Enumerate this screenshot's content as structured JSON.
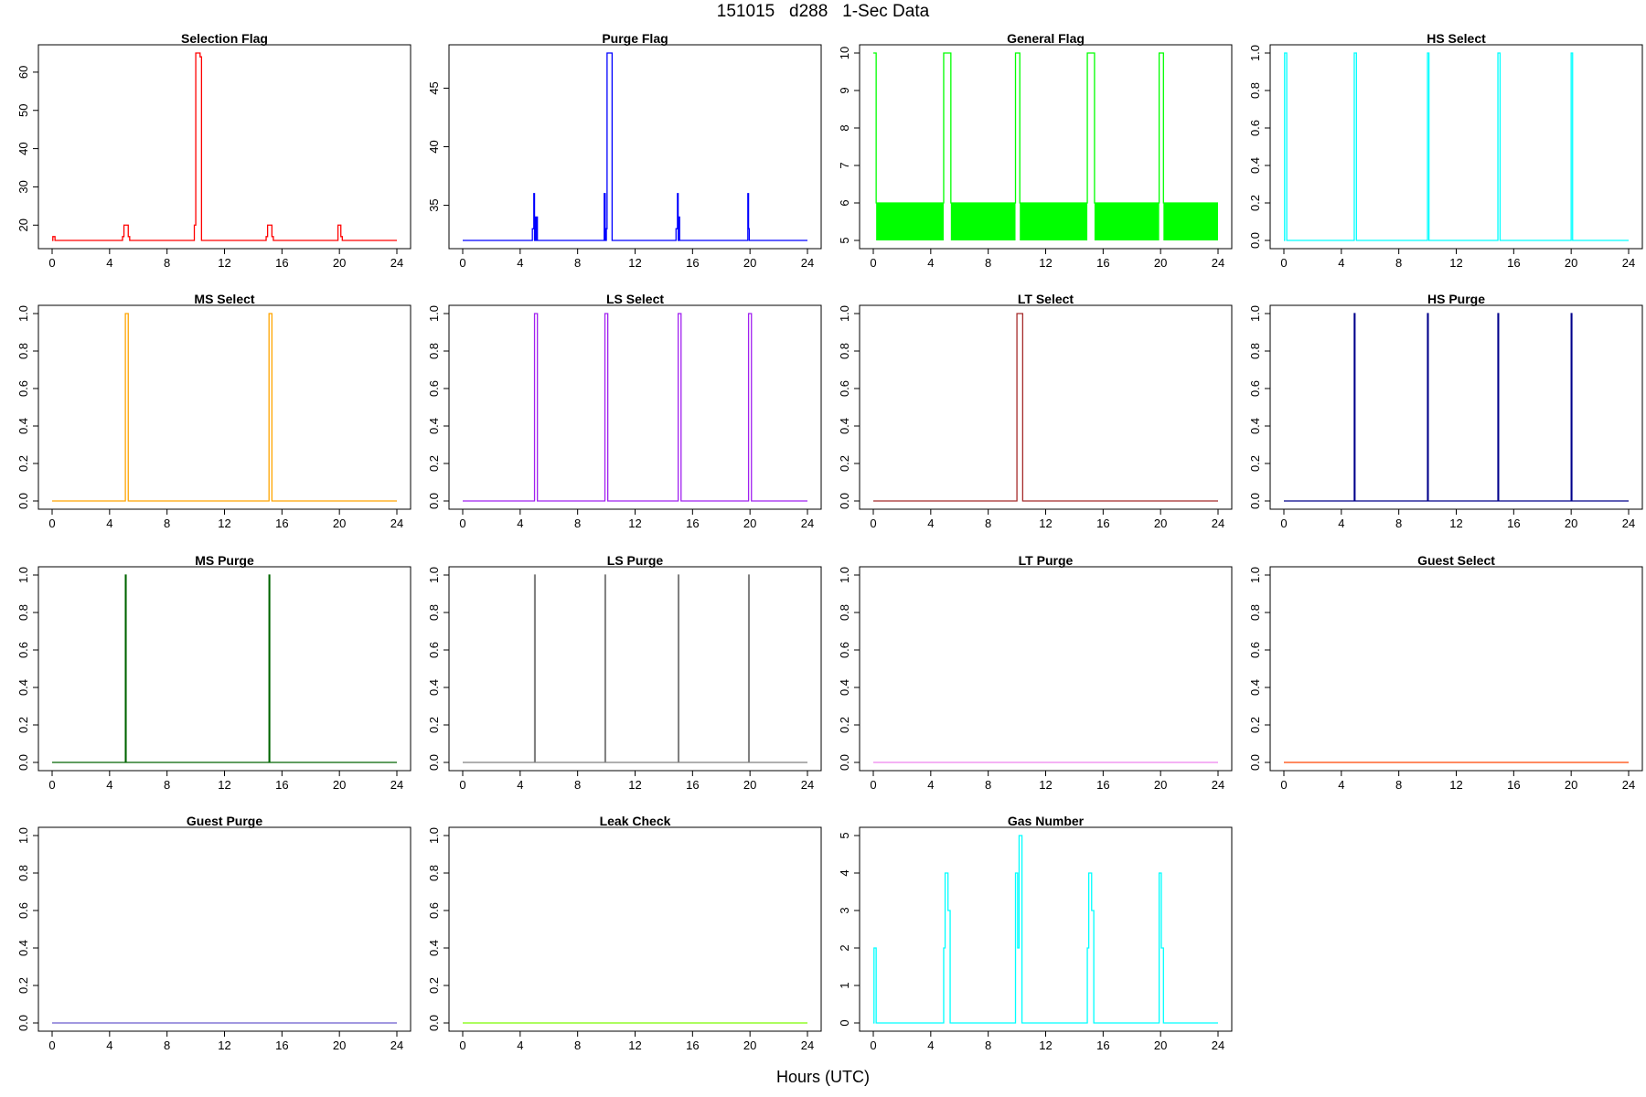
{
  "figure": {
    "title": "151015   d288   1-Sec Data",
    "xlabel": "Hours (UTC)"
  },
  "chart_data": [
    {
      "type": "line",
      "title": "Selection Flag",
      "color": "#ff0000",
      "xlim": [
        0,
        24
      ],
      "ylim": [
        16,
        65
      ],
      "xticks": [
        "0",
        "4",
        "8",
        "12",
        "16",
        "20",
        "24"
      ],
      "yticks": [
        "20",
        "30",
        "40",
        "50",
        "60"
      ],
      "series": [
        {
          "x": [
            0,
            0.05,
            0.05,
            0.2,
            0.2,
            4.9,
            4.9,
            5.0,
            5.0,
            5.3,
            5.3,
            5.4,
            5.4,
            9.9,
            9.9,
            10.0,
            10.0,
            10.3,
            10.3,
            10.4,
            10.4,
            14.9,
            14.9,
            15.0,
            15.0,
            15.3,
            15.3,
            15.4,
            15.4,
            19.9,
            19.9,
            20.1,
            20.1,
            20.2,
            20.2,
            24
          ],
          "y": [
            16,
            16,
            17,
            17,
            16,
            16,
            17,
            17,
            20,
            20,
            17,
            17,
            16,
            16,
            20,
            20,
            65,
            65,
            64,
            64,
            16,
            16,
            17,
            17,
            20,
            20,
            17,
            17,
            16,
            16,
            20,
            20,
            17,
            17,
            16,
            16
          ]
        }
      ]
    },
    {
      "type": "line",
      "title": "Purge Flag",
      "color": "#0000ff",
      "xlim": [
        0,
        24
      ],
      "ylim": [
        32,
        48
      ],
      "xticks": [
        "0",
        "4",
        "8",
        "12",
        "16",
        "20",
        "24"
      ],
      "yticks": [
        "35",
        "40",
        "45"
      ],
      "series": [
        {
          "x": [
            0,
            4.85,
            4.85,
            4.95,
            4.95,
            5.0,
            5.0,
            5.05,
            5.05,
            5.1,
            5.1,
            5.15,
            5.15,
            5.2,
            5.2,
            9.85,
            9.85,
            9.92,
            9.92,
            10.0,
            10.0,
            10.05,
            10.05,
            10.4,
            10.4,
            14.85,
            14.85,
            14.95,
            14.95,
            15.0,
            15.0,
            15.05,
            15.05,
            15.1,
            15.1,
            15.15,
            15.15,
            19.85,
            19.85,
            19.9,
            19.9,
            19.95,
            19.95,
            24
          ],
          "y": [
            32,
            32,
            33,
            33,
            36,
            36,
            32,
            32,
            34,
            34,
            32,
            32,
            34,
            34,
            32,
            32,
            36,
            36,
            32,
            32,
            33,
            33,
            48,
            48,
            32,
            32,
            33,
            33,
            36,
            36,
            32,
            32,
            34,
            34,
            32,
            32,
            32,
            32,
            36,
            36,
            33,
            33,
            32,
            32
          ]
        }
      ]
    },
    {
      "type": "line",
      "title": "General Flag",
      "color": "#00ff00",
      "band": [
        5,
        6
      ],
      "xlim": [
        0,
        24
      ],
      "ylim": [
        5,
        10
      ],
      "xticks": [
        "0",
        "4",
        "8",
        "12",
        "16",
        "20",
        "24"
      ],
      "yticks": [
        "5",
        "6",
        "7",
        "8",
        "9",
        "10"
      ],
      "series": [
        {
          "x": [
            0,
            0.2,
            0.2,
            4.9,
            4.9,
            5.4,
            5.4,
            9.9,
            9.9,
            10.2,
            10.2,
            14.9,
            14.9,
            15.4,
            15.4,
            19.9,
            19.9,
            20.2,
            20.2,
            24
          ],
          "y": [
            10,
            10,
            6,
            6,
            10,
            10,
            6,
            6,
            10,
            10,
            6,
            6,
            10,
            10,
            6,
            6,
            10,
            10,
            6,
            6
          ]
        }
      ]
    },
    {
      "type": "line",
      "title": "HS Select",
      "color": "#00ffff",
      "xlim": [
        0,
        24
      ],
      "ylim": [
        0,
        1
      ],
      "xticks": [
        "0",
        "4",
        "8",
        "12",
        "16",
        "20",
        "24"
      ],
      "yticks": [
        "0.0",
        "0.2",
        "0.4",
        "0.6",
        "0.8",
        "1.0"
      ],
      "series": [
        {
          "x": [
            0,
            0.05,
            0.05,
            0.2,
            0.2,
            4.9,
            4.9,
            5.05,
            5.05,
            10.0,
            10.0,
            10.1,
            10.1,
            14.9,
            14.9,
            15.05,
            15.05,
            20.0,
            20.0,
            20.1,
            20.1,
            24
          ],
          "y": [
            0,
            0,
            1,
            1,
            0,
            0,
            1,
            1,
            0,
            0,
            1,
            1,
            0,
            0,
            1,
            1,
            0,
            0,
            1,
            1,
            0,
            0
          ]
        }
      ]
    },
    {
      "type": "line",
      "title": "MS Select",
      "color": "#ffa500",
      "xlim": [
        0,
        24
      ],
      "ylim": [
        0,
        1
      ],
      "xticks": [
        "0",
        "4",
        "8",
        "12",
        "16",
        "20",
        "24"
      ],
      "yticks": [
        "0.0",
        "0.2",
        "0.4",
        "0.6",
        "0.8",
        "1.0"
      ],
      "series": [
        {
          "x": [
            0,
            5.1,
            5.1,
            5.3,
            5.3,
            15.1,
            15.1,
            15.3,
            15.3,
            24
          ],
          "y": [
            0,
            0,
            1,
            1,
            0,
            0,
            1,
            1,
            0,
            0
          ]
        }
      ]
    },
    {
      "type": "line",
      "title": "LS Select",
      "color": "#a020f0",
      "xlim": [
        0,
        24
      ],
      "ylim": [
        0,
        1
      ],
      "xticks": [
        "0",
        "4",
        "8",
        "12",
        "16",
        "20",
        "24"
      ],
      "yticks": [
        "0.0",
        "0.2",
        "0.4",
        "0.6",
        "0.8",
        "1.0"
      ],
      "series": [
        {
          "x": [
            0,
            5.0,
            5.0,
            5.2,
            5.2,
            9.9,
            9.9,
            10.1,
            10.1,
            15.0,
            15.0,
            15.2,
            15.2,
            19.9,
            19.9,
            20.1,
            20.1,
            24
          ],
          "y": [
            0,
            0,
            1,
            1,
            0,
            0,
            1,
            1,
            0,
            0,
            1,
            1,
            0,
            0,
            1,
            1,
            0,
            0
          ]
        }
      ]
    },
    {
      "type": "line",
      "title": "LT Select",
      "color": "#a52a2a",
      "xlim": [
        0,
        24
      ],
      "ylim": [
        0,
        1
      ],
      "xticks": [
        "0",
        "4",
        "8",
        "12",
        "16",
        "20",
        "24"
      ],
      "yticks": [
        "0.0",
        "0.2",
        "0.4",
        "0.6",
        "0.8",
        "1.0"
      ],
      "series": [
        {
          "x": [
            0,
            10.0,
            10.0,
            10.4,
            10.4,
            24
          ],
          "y": [
            0,
            0,
            1,
            1,
            0,
            0
          ]
        }
      ]
    },
    {
      "type": "line",
      "title": "HS Purge",
      "color": "#00008b",
      "xlim": [
        0,
        24
      ],
      "ylim": [
        0,
        1
      ],
      "xticks": [
        "0",
        "4",
        "8",
        "12",
        "16",
        "20",
        "24"
      ],
      "yticks": [
        "0.0",
        "0.2",
        "0.4",
        "0.6",
        "0.8",
        "1.0"
      ],
      "series": [
        {
          "x": [
            0,
            4.9,
            4.9,
            4.95,
            4.95,
            10.0,
            10.0,
            10.05,
            10.05,
            14.9,
            14.9,
            14.95,
            14.95,
            20.0,
            20.0,
            20.05,
            20.05,
            24
          ],
          "y": [
            0,
            0,
            1,
            1,
            0,
            0,
            1,
            1,
            0,
            0,
            1,
            1,
            0,
            0,
            1,
            1,
            0,
            0
          ]
        }
      ]
    },
    {
      "type": "line",
      "title": "MS Purge",
      "color": "#006400",
      "xlim": [
        0,
        24
      ],
      "ylim": [
        0,
        1
      ],
      "xticks": [
        "0",
        "4",
        "8",
        "12",
        "16",
        "20",
        "24"
      ],
      "yticks": [
        "0.0",
        "0.2",
        "0.4",
        "0.6",
        "0.8",
        "1.0"
      ],
      "series": [
        {
          "x": [
            0,
            5.1,
            5.1,
            5.15,
            5.15,
            15.1,
            15.1,
            15.15,
            15.15,
            24
          ],
          "y": [
            0,
            0,
            1,
            1,
            0,
            0,
            1,
            1,
            0,
            0
          ]
        }
      ]
    },
    {
      "type": "line",
      "title": "LS Purge",
      "color": "#808080",
      "xlim": [
        0,
        24
      ],
      "ylim": [
        0,
        1
      ],
      "xticks": [
        "0",
        "4",
        "8",
        "12",
        "16",
        "20",
        "24"
      ],
      "yticks": [
        "0.0",
        "0.2",
        "0.4",
        "0.6",
        "0.8",
        "1.0"
      ],
      "series": [
        {
          "x": [
            0,
            5.0,
            5.0,
            5.05,
            5.05,
            9.9,
            9.9,
            9.95,
            9.95,
            15.0,
            15.0,
            15.05,
            15.05,
            19.9,
            19.9,
            19.95,
            19.95,
            24
          ],
          "y": [
            0,
            0,
            1,
            1,
            0,
            0,
            1,
            1,
            0,
            0,
            1,
            1,
            0,
            0,
            1,
            1,
            0,
            0
          ]
        }
      ]
    },
    {
      "type": "line",
      "title": "LT Purge",
      "color": "#ee82ee",
      "xlim": [
        0,
        24
      ],
      "ylim": [
        0,
        1
      ],
      "xticks": [
        "0",
        "4",
        "8",
        "12",
        "16",
        "20",
        "24"
      ],
      "yticks": [
        "0.0",
        "0.2",
        "0.4",
        "0.6",
        "0.8",
        "1.0"
      ],
      "series": [
        {
          "x": [
            0,
            24
          ],
          "y": [
            0,
            0
          ]
        }
      ]
    },
    {
      "type": "line",
      "title": "Guest Select",
      "color": "#ff4500",
      "xlim": [
        0,
        24
      ],
      "ylim": [
        0,
        1
      ],
      "xticks": [
        "0",
        "4",
        "8",
        "12",
        "16",
        "20",
        "24"
      ],
      "yticks": [
        "0.0",
        "0.2",
        "0.4",
        "0.6",
        "0.8",
        "1.0"
      ],
      "series": [
        {
          "x": [
            0,
            24
          ],
          "y": [
            0,
            0
          ]
        }
      ]
    },
    {
      "type": "line",
      "title": "Guest Purge",
      "color": "#6a5acd",
      "xlim": [
        0,
        24
      ],
      "ylim": [
        0,
        1
      ],
      "xticks": [
        "0",
        "4",
        "8",
        "12",
        "16",
        "20",
        "24"
      ],
      "yticks": [
        "0.0",
        "0.2",
        "0.4",
        "0.6",
        "0.8",
        "1.0"
      ],
      "series": [
        {
          "x": [
            0,
            24
          ],
          "y": [
            0,
            0
          ]
        }
      ]
    },
    {
      "type": "line",
      "title": "Leak Check",
      "color": "#7cfc00",
      "xlim": [
        0,
        24
      ],
      "ylim": [
        0,
        1
      ],
      "xticks": [
        "0",
        "4",
        "8",
        "12",
        "16",
        "20",
        "24"
      ],
      "yticks": [
        "0.0",
        "0.2",
        "0.4",
        "0.6",
        "0.8",
        "1.0"
      ],
      "series": [
        {
          "x": [
            0,
            24
          ],
          "y": [
            0,
            0
          ]
        }
      ]
    },
    {
      "type": "line",
      "title": "Gas Number",
      "color": "#00ffff",
      "xlim": [
        0,
        24
      ],
      "ylim": [
        0,
        5
      ],
      "xticks": [
        "0",
        "4",
        "8",
        "12",
        "16",
        "20",
        "24"
      ],
      "yticks": [
        "0",
        "1",
        "2",
        "3",
        "4",
        "5"
      ],
      "series": [
        {
          "x": [
            0,
            0.05,
            0.05,
            0.2,
            0.2,
            4.9,
            4.9,
            5.0,
            5.0,
            5.2,
            5.2,
            5.35,
            5.35,
            9.9,
            9.9,
            10.05,
            10.05,
            10.15,
            10.15,
            10.35,
            10.35,
            14.9,
            14.9,
            15.0,
            15.0,
            15.2,
            15.2,
            15.35,
            15.35,
            19.9,
            19.9,
            20.05,
            20.05,
            20.2,
            20.2,
            24
          ],
          "y": [
            0,
            0,
            2,
            2,
            0,
            0,
            2,
            2,
            4,
            4,
            3,
            3,
            0,
            0,
            4,
            4,
            2,
            2,
            5,
            5,
            0,
            0,
            2,
            2,
            4,
            4,
            3,
            3,
            0,
            0,
            4,
            4,
            2,
            2,
            0,
            0
          ]
        }
      ]
    }
  ]
}
